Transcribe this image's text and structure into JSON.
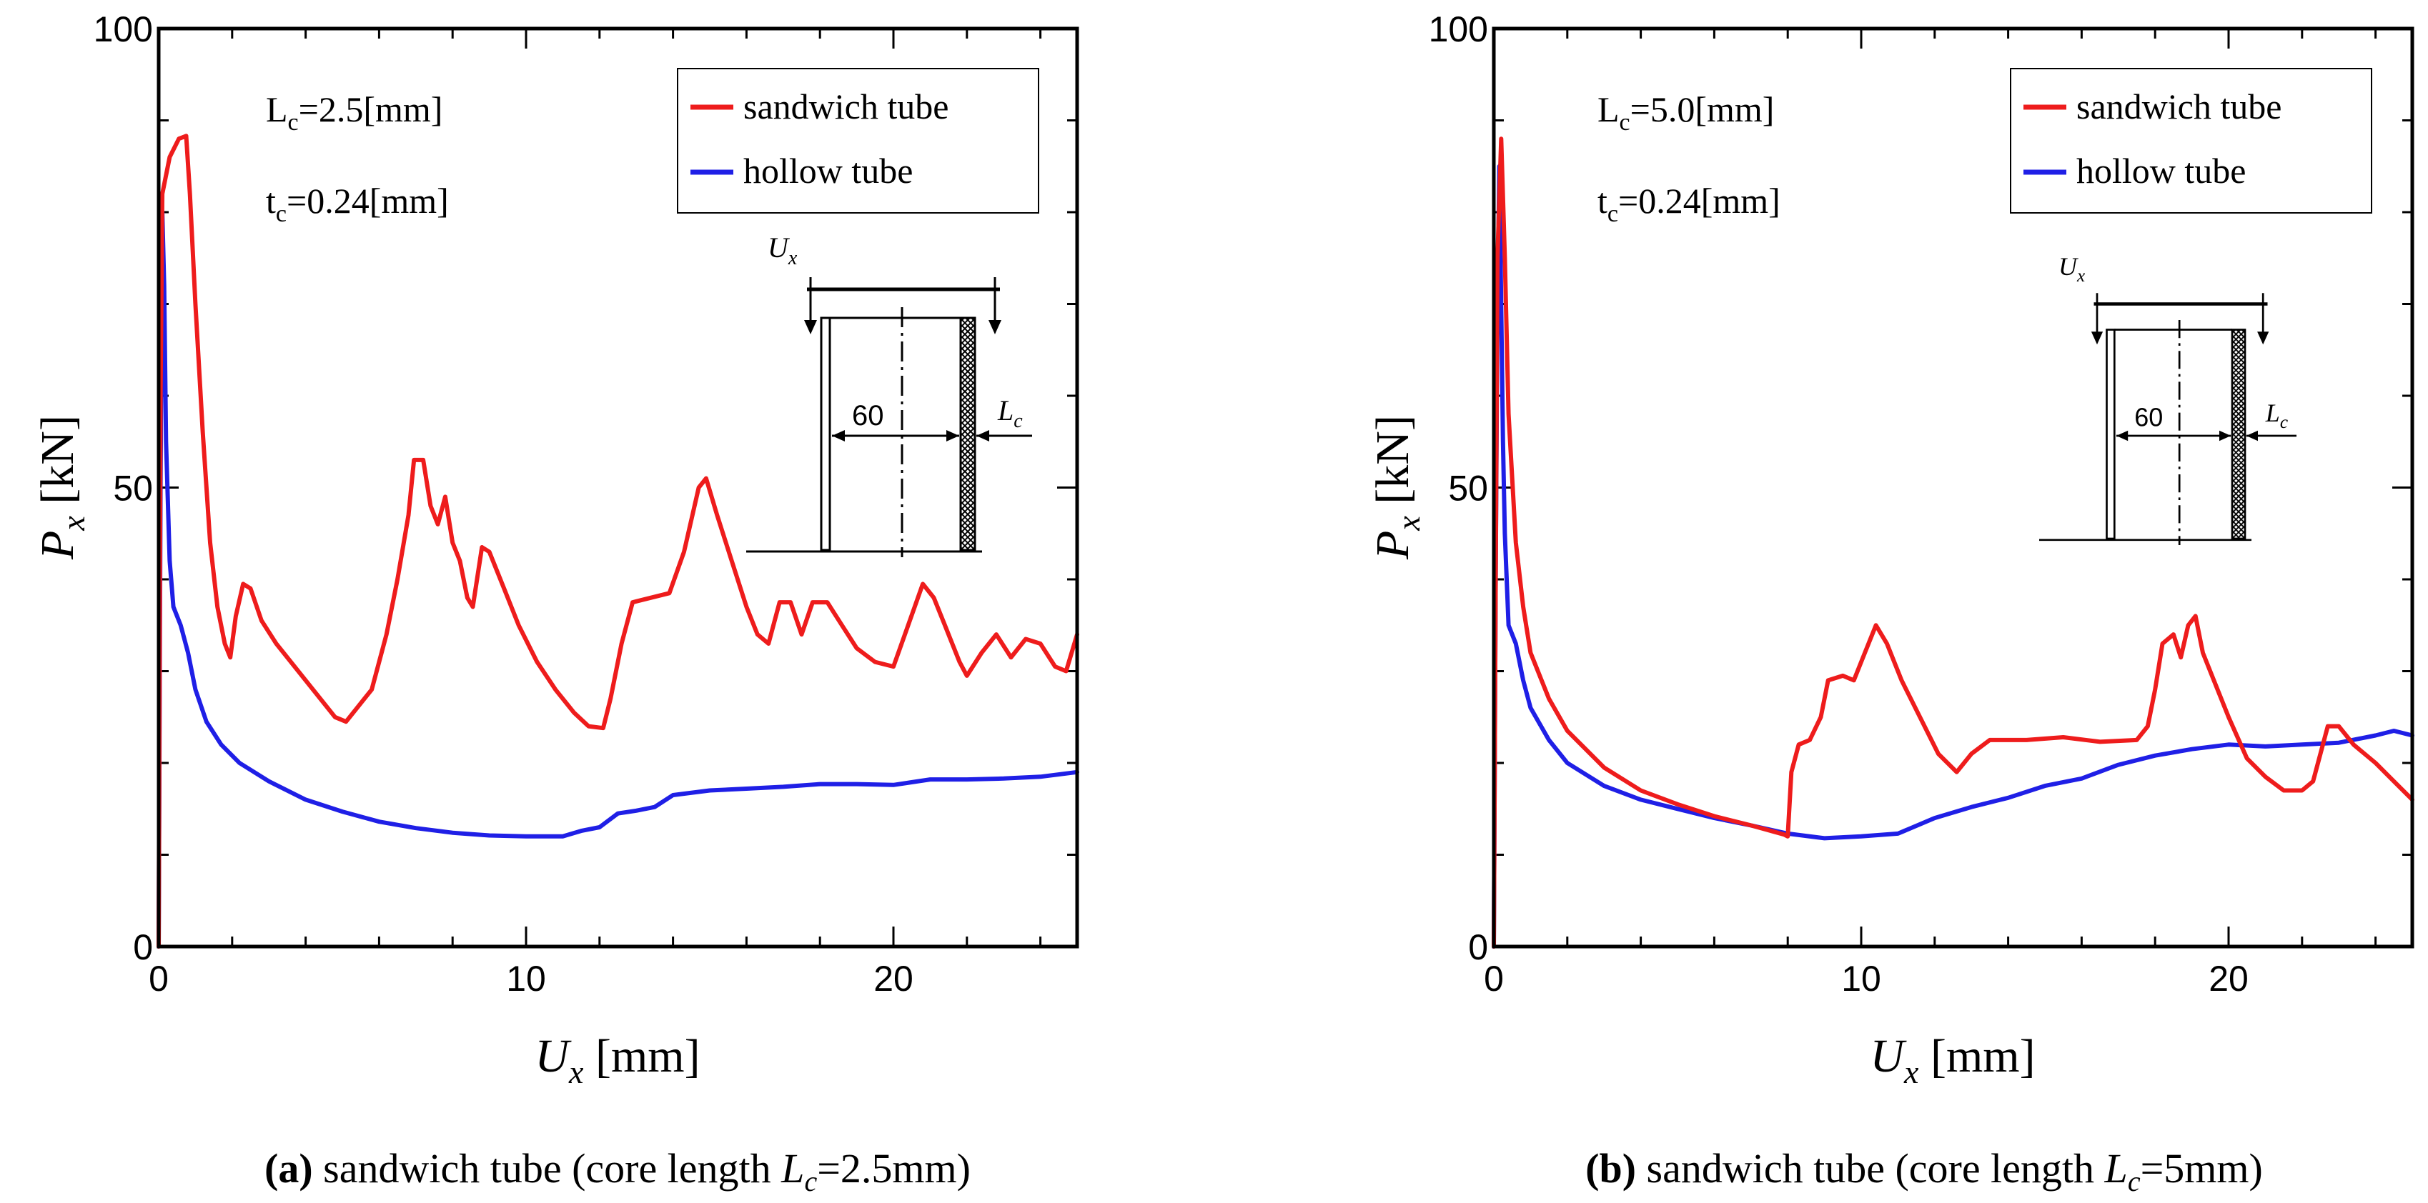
{
  "chart_data": [
    {
      "type": "line",
      "caption_label": "(a)",
      "caption_text": "sandwich tube (core length ",
      "caption_var": "L",
      "caption_sub": "c",
      "caption_tail": "=2.5mm)",
      "xlabel_var": "U",
      "xlabel_sub": "x",
      "xlabel_unit": " [mm]",
      "ylabel_var": "P",
      "ylabel_sub": "x",
      "ylabel_unit": " [kN]",
      "xlim": [
        0,
        25
      ],
      "ylim": [
        0,
        100
      ],
      "xticks": [
        0,
        10,
        20
      ],
      "yticks": [
        0,
        50,
        100
      ],
      "annotations": [
        {
          "main": "L",
          "sub": "c",
          "rest": "=2.5[mm]"
        },
        {
          "main": "t",
          "sub": "c",
          "rest": "=0.24[mm]"
        }
      ],
      "inset": {
        "load": "U",
        "load_sub": "x",
        "diameter": "60",
        "core": "L",
        "core_sub": "c"
      },
      "legend_position": "top-right",
      "series": [
        {
          "name": "sandwich tube",
          "color": "#ee1c1c",
          "points": [
            [
              0,
              0
            ],
            [
              0.05,
              60
            ],
            [
              0.1,
              82
            ],
            [
              0.3,
              86
            ],
            [
              0.55,
              88
            ],
            [
              0.75,
              88.3
            ],
            [
              0.85,
              82
            ],
            [
              1.0,
              70
            ],
            [
              1.2,
              56
            ],
            [
              1.4,
              44
            ],
            [
              1.6,
              37
            ],
            [
              1.8,
              33
            ],
            [
              1.95,
              31.5
            ],
            [
              2.1,
              36
            ],
            [
              2.3,
              39.5
            ],
            [
              2.5,
              39
            ],
            [
              2.8,
              35.5
            ],
            [
              3.2,
              33
            ],
            [
              3.8,
              30
            ],
            [
              4.3,
              27.5
            ],
            [
              4.8,
              25
            ],
            [
              5.1,
              24.5
            ],
            [
              5.4,
              26
            ],
            [
              5.8,
              28
            ],
            [
              6.2,
              34
            ],
            [
              6.5,
              40
            ],
            [
              6.8,
              47
            ],
            [
              6.95,
              53
            ],
            [
              7.2,
              53
            ],
            [
              7.4,
              48
            ],
            [
              7.6,
              46
            ],
            [
              7.8,
              49
            ],
            [
              8.0,
              44
            ],
            [
              8.2,
              42
            ],
            [
              8.4,
              38
            ],
            [
              8.55,
              37
            ],
            [
              8.8,
              43.5
            ],
            [
              9.0,
              43
            ],
            [
              9.4,
              39
            ],
            [
              9.8,
              35
            ],
            [
              10.3,
              31
            ],
            [
              10.8,
              28
            ],
            [
              11.3,
              25.5
            ],
            [
              11.7,
              24
            ],
            [
              12.1,
              23.8
            ],
            [
              12.3,
              27
            ],
            [
              12.6,
              33
            ],
            [
              12.9,
              37.5
            ],
            [
              13.4,
              38
            ],
            [
              13.9,
              38.5
            ],
            [
              14.3,
              43
            ],
            [
              14.7,
              50
            ],
            [
              14.9,
              51
            ],
            [
              15.2,
              47
            ],
            [
              15.6,
              42
            ],
            [
              16.0,
              37
            ],
            [
              16.3,
              34
            ],
            [
              16.6,
              33
            ],
            [
              16.9,
              37.5
            ],
            [
              17.2,
              37.5
            ],
            [
              17.5,
              34
            ],
            [
              17.8,
              37.5
            ],
            [
              18.2,
              37.5
            ],
            [
              18.6,
              35
            ],
            [
              19.0,
              32.5
            ],
            [
              19.5,
              31
            ],
            [
              20.0,
              30.5
            ],
            [
              20.4,
              35
            ],
            [
              20.8,
              39.5
            ],
            [
              21.1,
              38
            ],
            [
              21.4,
              35
            ],
            [
              21.8,
              31
            ],
            [
              22.0,
              29.5
            ],
            [
              22.4,
              32
            ],
            [
              22.8,
              34
            ],
            [
              23.2,
              31.5
            ],
            [
              23.6,
              33.5
            ],
            [
              24.0,
              33
            ],
            [
              24.4,
              30.5
            ],
            [
              24.7,
              30
            ],
            [
              25.0,
              34
            ]
          ]
        },
        {
          "name": "hollow tube",
          "color": "#1f1fe6",
          "points": [
            [
              0,
              0
            ],
            [
              0.05,
              50
            ],
            [
              0.1,
              80
            ],
            [
              0.15,
              72
            ],
            [
              0.2,
              55
            ],
            [
              0.3,
              42
            ],
            [
              0.4,
              37
            ],
            [
              0.6,
              35
            ],
            [
              0.8,
              32
            ],
            [
              1.0,
              28
            ],
            [
              1.3,
              24.5
            ],
            [
              1.7,
              22
            ],
            [
              2.2,
              20
            ],
            [
              3.0,
              18
            ],
            [
              4.0,
              16
            ],
            [
              5.0,
              14.7
            ],
            [
              6.0,
              13.6
            ],
            [
              7.0,
              12.9
            ],
            [
              8.0,
              12.4
            ],
            [
              9.0,
              12.1
            ],
            [
              10.0,
              12.0
            ],
            [
              11.0,
              12.0
            ],
            [
              11.5,
              12.6
            ],
            [
              12.0,
              13.0
            ],
            [
              12.5,
              14.5
            ],
            [
              13.0,
              14.8
            ],
            [
              13.5,
              15.2
            ],
            [
              14.0,
              16.5
            ],
            [
              15.0,
              17.0
            ],
            [
              16.0,
              17.2
            ],
            [
              17.0,
              17.4
            ],
            [
              18.0,
              17.7
            ],
            [
              19.0,
              17.7
            ],
            [
              20.0,
              17.6
            ],
            [
              21.0,
              18.2
            ],
            [
              22.0,
              18.2
            ],
            [
              23.0,
              18.3
            ],
            [
              24.0,
              18.5
            ],
            [
              25.0,
              19.0
            ]
          ]
        }
      ]
    },
    {
      "type": "line",
      "caption_label": "(b)",
      "caption_text": "sandwich tube (core length ",
      "caption_var": "L",
      "caption_sub": "c",
      "caption_tail": "=5mm)",
      "xlabel_var": "U",
      "xlabel_sub": "x",
      "xlabel_unit": " [mm]",
      "ylabel_var": "P",
      "ylabel_sub": "x",
      "ylabel_unit": " [kN]",
      "xlim": [
        0,
        25
      ],
      "ylim": [
        0,
        100
      ],
      "xticks": [
        0,
        10,
        20
      ],
      "yticks": [
        0,
        50,
        100
      ],
      "annotations": [
        {
          "main": "L",
          "sub": "c",
          "rest": "=5.0[mm]"
        },
        {
          "main": "t",
          "sub": "c",
          "rest": "=0.24[mm]"
        }
      ],
      "inset": {
        "load": "U",
        "load_sub": "x",
        "diameter": "60",
        "core": "L",
        "core_sub": "c"
      },
      "legend_position": "top-right",
      "series": [
        {
          "name": "sandwich tube",
          "color": "#ee1c1c",
          "points": [
            [
              0,
              0
            ],
            [
              0.05,
              40
            ],
            [
              0.1,
              75
            ],
            [
              0.2,
              88
            ],
            [
              0.3,
              75
            ],
            [
              0.4,
              58
            ],
            [
              0.6,
              44
            ],
            [
              0.8,
              37
            ],
            [
              1.0,
              32
            ],
            [
              1.5,
              27
            ],
            [
              2.0,
              23.5
            ],
            [
              3.0,
              19.5
            ],
            [
              4.0,
              17
            ],
            [
              5.0,
              15.5
            ],
            [
              6.0,
              14.2
            ],
            [
              7.0,
              13.2
            ],
            [
              7.9,
              12.2
            ],
            [
              8.0,
              12
            ],
            [
              8.1,
              19
            ],
            [
              8.3,
              22
            ],
            [
              8.6,
              22.5
            ],
            [
              8.9,
              25
            ],
            [
              9.1,
              29
            ],
            [
              9.5,
              29.5
            ],
            [
              9.8,
              29
            ],
            [
              10.1,
              32
            ],
            [
              10.4,
              35
            ],
            [
              10.7,
              33
            ],
            [
              11.1,
              29
            ],
            [
              11.6,
              25
            ],
            [
              12.1,
              21
            ],
            [
              12.6,
              19
            ],
            [
              13.0,
              21
            ],
            [
              13.5,
              22.5
            ],
            [
              14.5,
              22.5
            ],
            [
              15.5,
              22.8
            ],
            [
              16.5,
              22.3
            ],
            [
              17.5,
              22.5
            ],
            [
              17.8,
              24
            ],
            [
              18.0,
              28
            ],
            [
              18.2,
              33
            ],
            [
              18.5,
              34
            ],
            [
              18.7,
              31.5
            ],
            [
              18.9,
              35
            ],
            [
              19.1,
              36
            ],
            [
              19.3,
              32
            ],
            [
              19.6,
              29
            ],
            [
              20.0,
              25
            ],
            [
              20.5,
              20.5
            ],
            [
              21.0,
              18.5
            ],
            [
              21.5,
              17
            ],
            [
              22.0,
              17
            ],
            [
              22.3,
              18
            ],
            [
              22.5,
              21
            ],
            [
              22.7,
              24
            ],
            [
              23.0,
              24
            ],
            [
              23.4,
              22
            ],
            [
              24.0,
              20
            ],
            [
              24.5,
              18
            ],
            [
              25.0,
              16
            ]
          ]
        },
        {
          "name": "hollow tube",
          "color": "#1f1fe6",
          "points": [
            [
              0,
              0
            ],
            [
              0.05,
              40
            ],
            [
              0.1,
              70
            ],
            [
              0.15,
              85
            ],
            [
              0.2,
              70
            ],
            [
              0.25,
              55
            ],
            [
              0.3,
              45
            ],
            [
              0.35,
              40
            ],
            [
              0.4,
              35
            ],
            [
              0.6,
              33
            ],
            [
              0.8,
              29
            ],
            [
              1.0,
              26
            ],
            [
              1.5,
              22.5
            ],
            [
              2.0,
              20
            ],
            [
              3.0,
              17.5
            ],
            [
              4.0,
              16
            ],
            [
              5.0,
              15
            ],
            [
              6.0,
              14
            ],
            [
              7.0,
              13.2
            ],
            [
              8.0,
              12.3
            ],
            [
              9.0,
              11.8
            ],
            [
              10.0,
              12.0
            ],
            [
              11.0,
              12.3
            ],
            [
              12.0,
              14
            ],
            [
              13.0,
              15.2
            ],
            [
              14.0,
              16.2
            ],
            [
              15.0,
              17.5
            ],
            [
              16.0,
              18.3
            ],
            [
              17.0,
              19.8
            ],
            [
              18.0,
              20.8
            ],
            [
              19.0,
              21.5
            ],
            [
              20.0,
              22
            ],
            [
              21.0,
              21.8
            ],
            [
              22.0,
              22
            ],
            [
              23.0,
              22.2
            ],
            [
              24.0,
              23
            ],
            [
              24.5,
              23.5
            ],
            [
              25.0,
              23
            ]
          ]
        }
      ]
    }
  ]
}
